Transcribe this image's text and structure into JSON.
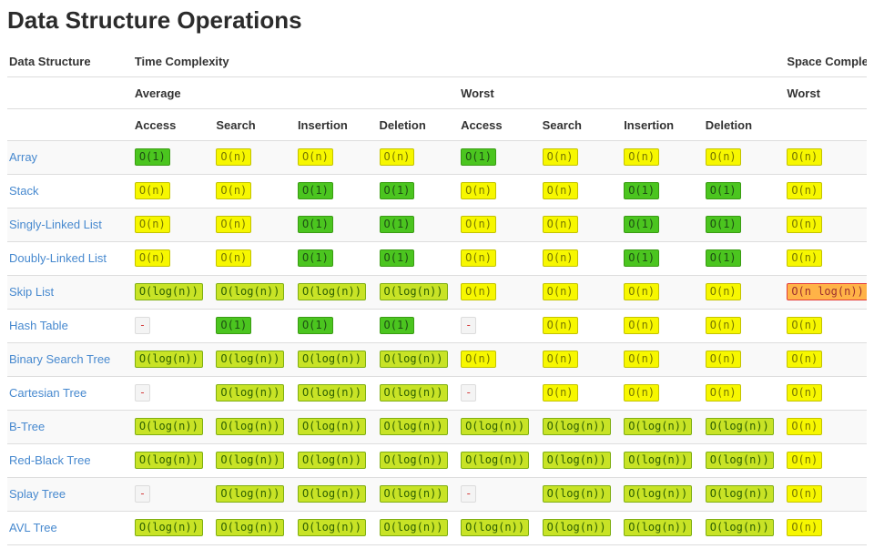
{
  "page": {
    "title": "Data Structure Operations"
  },
  "table": {
    "header": {
      "col1": "Data Structure",
      "time_group": "Time Complexity",
      "space_group": "Space Complexity",
      "avg_group": "Average",
      "worst_group": "Worst",
      "space_worst": "Worst",
      "ops": [
        "Access",
        "Search",
        "Insertion",
        "Deletion",
        "Access",
        "Search",
        "Insertion",
        "Deletion"
      ]
    },
    "levels": {
      "excellent": {
        "bg": "#4bc51f",
        "border": "#3a9c13",
        "text": "#1e4d14"
      },
      "good": {
        "bg": "#c8e326",
        "border": "#7fae12",
        "text": "#2c5e00"
      },
      "fair": {
        "bg": "#f7f700",
        "border": "#c3c300",
        "text": "#767600"
      },
      "bad": {
        "bg": "#ffb347",
        "border": "#e23b3b",
        "text": "#9c2f2f"
      },
      "na": {
        "bg": "#f4f4f4",
        "border": "#dcdcdc",
        "text": "#d43f3f"
      }
    },
    "rows": [
      {
        "name": "Array",
        "cells": [
          {
            "text": "O(1)",
            "level": "excellent"
          },
          {
            "text": "O(n)",
            "level": "fair"
          },
          {
            "text": "O(n)",
            "level": "fair"
          },
          {
            "text": "O(n)",
            "level": "fair"
          },
          {
            "text": "O(1)",
            "level": "excellent"
          },
          {
            "text": "O(n)",
            "level": "fair"
          },
          {
            "text": "O(n)",
            "level": "fair"
          },
          {
            "text": "O(n)",
            "level": "fair"
          },
          {
            "text": "O(n)",
            "level": "fair"
          }
        ]
      },
      {
        "name": "Stack",
        "cells": [
          {
            "text": "O(n)",
            "level": "fair"
          },
          {
            "text": "O(n)",
            "level": "fair"
          },
          {
            "text": "O(1)",
            "level": "excellent"
          },
          {
            "text": "O(1)",
            "level": "excellent"
          },
          {
            "text": "O(n)",
            "level": "fair"
          },
          {
            "text": "O(n)",
            "level": "fair"
          },
          {
            "text": "O(1)",
            "level": "excellent"
          },
          {
            "text": "O(1)",
            "level": "excellent"
          },
          {
            "text": "O(n)",
            "level": "fair"
          }
        ]
      },
      {
        "name": "Singly-Linked List",
        "cells": [
          {
            "text": "O(n)",
            "level": "fair"
          },
          {
            "text": "O(n)",
            "level": "fair"
          },
          {
            "text": "O(1)",
            "level": "excellent"
          },
          {
            "text": "O(1)",
            "level": "excellent"
          },
          {
            "text": "O(n)",
            "level": "fair"
          },
          {
            "text": "O(n)",
            "level": "fair"
          },
          {
            "text": "O(1)",
            "level": "excellent"
          },
          {
            "text": "O(1)",
            "level": "excellent"
          },
          {
            "text": "O(n)",
            "level": "fair"
          }
        ]
      },
      {
        "name": "Doubly-Linked List",
        "cells": [
          {
            "text": "O(n)",
            "level": "fair"
          },
          {
            "text": "O(n)",
            "level": "fair"
          },
          {
            "text": "O(1)",
            "level": "excellent"
          },
          {
            "text": "O(1)",
            "level": "excellent"
          },
          {
            "text": "O(n)",
            "level": "fair"
          },
          {
            "text": "O(n)",
            "level": "fair"
          },
          {
            "text": "O(1)",
            "level": "excellent"
          },
          {
            "text": "O(1)",
            "level": "excellent"
          },
          {
            "text": "O(n)",
            "level": "fair"
          }
        ]
      },
      {
        "name": "Skip List",
        "cells": [
          {
            "text": "O(log(n))",
            "level": "good"
          },
          {
            "text": "O(log(n))",
            "level": "good"
          },
          {
            "text": "O(log(n))",
            "level": "good"
          },
          {
            "text": "O(log(n))",
            "level": "good"
          },
          {
            "text": "O(n)",
            "level": "fair"
          },
          {
            "text": "O(n)",
            "level": "fair"
          },
          {
            "text": "O(n)",
            "level": "fair"
          },
          {
            "text": "O(n)",
            "level": "fair"
          },
          {
            "text": "O(n log(n))",
            "level": "bad"
          }
        ]
      },
      {
        "name": "Hash Table",
        "cells": [
          {
            "text": "-",
            "level": "na"
          },
          {
            "text": "O(1)",
            "level": "excellent"
          },
          {
            "text": "O(1)",
            "level": "excellent"
          },
          {
            "text": "O(1)",
            "level": "excellent"
          },
          {
            "text": "-",
            "level": "na"
          },
          {
            "text": "O(n)",
            "level": "fair"
          },
          {
            "text": "O(n)",
            "level": "fair"
          },
          {
            "text": "O(n)",
            "level": "fair"
          },
          {
            "text": "O(n)",
            "level": "fair"
          }
        ]
      },
      {
        "name": "Binary Search Tree",
        "cells": [
          {
            "text": "O(log(n))",
            "level": "good"
          },
          {
            "text": "O(log(n))",
            "level": "good"
          },
          {
            "text": "O(log(n))",
            "level": "good"
          },
          {
            "text": "O(log(n))",
            "level": "good"
          },
          {
            "text": "O(n)",
            "level": "fair"
          },
          {
            "text": "O(n)",
            "level": "fair"
          },
          {
            "text": "O(n)",
            "level": "fair"
          },
          {
            "text": "O(n)",
            "level": "fair"
          },
          {
            "text": "O(n)",
            "level": "fair"
          }
        ]
      },
      {
        "name": "Cartesian Tree",
        "cells": [
          {
            "text": "-",
            "level": "na"
          },
          {
            "text": "O(log(n))",
            "level": "good"
          },
          {
            "text": "O(log(n))",
            "level": "good"
          },
          {
            "text": "O(log(n))",
            "level": "good"
          },
          {
            "text": "-",
            "level": "na"
          },
          {
            "text": "O(n)",
            "level": "fair"
          },
          {
            "text": "O(n)",
            "level": "fair"
          },
          {
            "text": "O(n)",
            "level": "fair"
          },
          {
            "text": "O(n)",
            "level": "fair"
          }
        ]
      },
      {
        "name": "B-Tree",
        "cells": [
          {
            "text": "O(log(n))",
            "level": "good"
          },
          {
            "text": "O(log(n))",
            "level": "good"
          },
          {
            "text": "O(log(n))",
            "level": "good"
          },
          {
            "text": "O(log(n))",
            "level": "good"
          },
          {
            "text": "O(log(n))",
            "level": "good"
          },
          {
            "text": "O(log(n))",
            "level": "good"
          },
          {
            "text": "O(log(n))",
            "level": "good"
          },
          {
            "text": "O(log(n))",
            "level": "good"
          },
          {
            "text": "O(n)",
            "level": "fair"
          }
        ]
      },
      {
        "name": "Red-Black Tree",
        "cells": [
          {
            "text": "O(log(n))",
            "level": "good"
          },
          {
            "text": "O(log(n))",
            "level": "good"
          },
          {
            "text": "O(log(n))",
            "level": "good"
          },
          {
            "text": "O(log(n))",
            "level": "good"
          },
          {
            "text": "O(log(n))",
            "level": "good"
          },
          {
            "text": "O(log(n))",
            "level": "good"
          },
          {
            "text": "O(log(n))",
            "level": "good"
          },
          {
            "text": "O(log(n))",
            "level": "good"
          },
          {
            "text": "O(n)",
            "level": "fair"
          }
        ]
      },
      {
        "name": "Splay Tree",
        "cells": [
          {
            "text": "-",
            "level": "na"
          },
          {
            "text": "O(log(n))",
            "level": "good"
          },
          {
            "text": "O(log(n))",
            "level": "good"
          },
          {
            "text": "O(log(n))",
            "level": "good"
          },
          {
            "text": "-",
            "level": "na"
          },
          {
            "text": "O(log(n))",
            "level": "good"
          },
          {
            "text": "O(log(n))",
            "level": "good"
          },
          {
            "text": "O(log(n))",
            "level": "good"
          },
          {
            "text": "O(n)",
            "level": "fair"
          }
        ]
      },
      {
        "name": "AVL Tree",
        "cells": [
          {
            "text": "O(log(n))",
            "level": "good"
          },
          {
            "text": "O(log(n))",
            "level": "good"
          },
          {
            "text": "O(log(n))",
            "level": "good"
          },
          {
            "text": "O(log(n))",
            "level": "good"
          },
          {
            "text": "O(log(n))",
            "level": "good"
          },
          {
            "text": "O(log(n))",
            "level": "good"
          },
          {
            "text": "O(log(n))",
            "level": "good"
          },
          {
            "text": "O(log(n))",
            "level": "good"
          },
          {
            "text": "O(n)",
            "level": "fair"
          }
        ]
      }
    ]
  }
}
